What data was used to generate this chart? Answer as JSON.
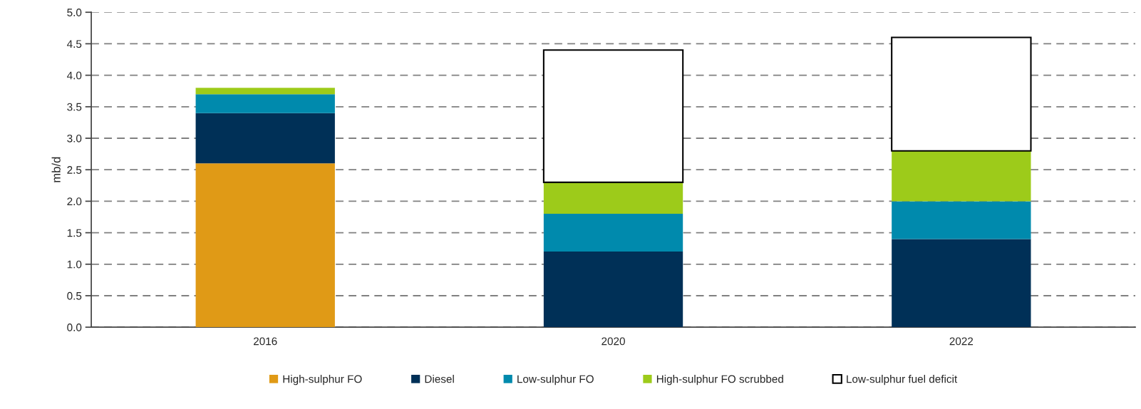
{
  "chart_data": {
    "type": "bar",
    "stacked": true,
    "ylabel": "mb/d",
    "categories": [
      "2016",
      "2020",
      "2022"
    ],
    "series": [
      {
        "name": "High-sulphur FO",
        "color": "#e09a16",
        "values": [
          2.6,
          null,
          null
        ]
      },
      {
        "name": "Diesel",
        "color": "#003057",
        "values": [
          0.8,
          1.2,
          1.4
        ]
      },
      {
        "name": "Low-sulphur FO",
        "color": "#008aad",
        "values": [
          0.3,
          0.6,
          0.6
        ]
      },
      {
        "name": "High-sulphur FO scrubbed",
        "color": "#9dcb1a",
        "values": [
          0.1,
          0.5,
          0.8
        ]
      },
      {
        "name": "Low-sulphur fuel deficit",
        "color": "#ffffff",
        "values": [
          null,
          2.1,
          1.8
        ]
      }
    ],
    "ylim": [
      0,
      5
    ],
    "yticks": [
      {
        "value": 0,
        "label": "0.0"
      },
      {
        "value": 0.5,
        "label": "0.5"
      },
      {
        "value": 1,
        "label": "1.0"
      },
      {
        "value": 1.5,
        "label": "1.5"
      },
      {
        "value": 2,
        "label": "2.0"
      },
      {
        "value": 2.5,
        "label": "2.5"
      },
      {
        "value": 3,
        "label": "3.0"
      },
      {
        "value": 3.5,
        "label": "3.5"
      },
      {
        "value": 4,
        "label": "4.0"
      },
      {
        "value": 4.5,
        "label": "4.5"
      },
      {
        "value": 5,
        "label": "5.0"
      }
    ],
    "grid": "y",
    "legend": "bottom"
  }
}
